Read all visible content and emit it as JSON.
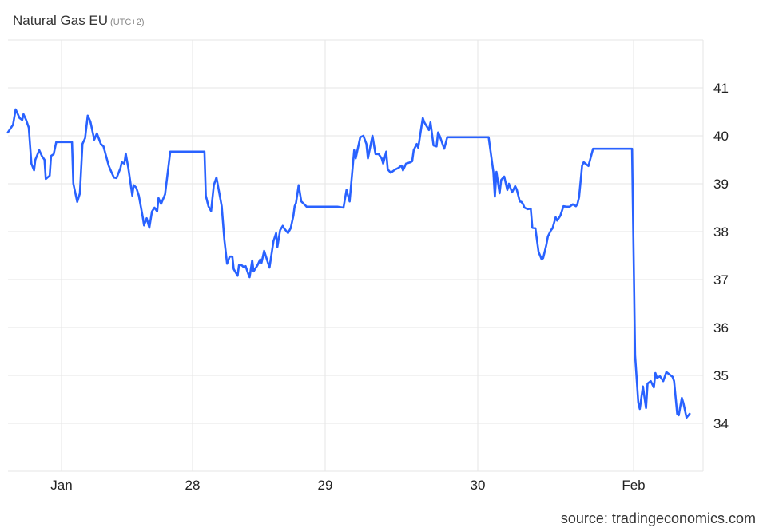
{
  "header": {
    "title": "Natural Gas EU",
    "timezone": "(UTC+2)"
  },
  "footer": {
    "source": "source: tradingeconomics.com"
  },
  "chart_data": {
    "type": "line",
    "title": "Natural Gas EU",
    "xlabel": "",
    "ylabel": "",
    "ylim": [
      33,
      42
    ],
    "xlim": [
      -0.41,
      4.45
    ],
    "grid": true,
    "y_axis_side": "right",
    "colors": {
      "line": "#2962ff",
      "grid": "#e6e6e6"
    },
    "x_ticks": [
      {
        "label": "Jan",
        "x": 0
      },
      {
        "label": "28",
        "x": 1
      },
      {
        "label": "29",
        "x": 2
      },
      {
        "label": "30",
        "x": 3
      },
      {
        "label": "Feb",
        "x": 4
      }
    ],
    "y_ticks": [
      34,
      35,
      36,
      37,
      38,
      39,
      40,
      41
    ],
    "series": [
      {
        "points": [
          [
            -0.41,
            40.07
          ],
          [
            -0.37,
            40.23
          ],
          [
            -0.35,
            40.55
          ],
          [
            -0.32,
            40.37
          ],
          [
            -0.3,
            40.33
          ],
          [
            -0.29,
            40.45
          ],
          [
            -0.27,
            40.33
          ],
          [
            -0.25,
            40.17
          ],
          [
            -0.23,
            39.42
          ],
          [
            -0.21,
            39.28
          ],
          [
            -0.2,
            39.5
          ],
          [
            -0.17,
            39.7
          ],
          [
            -0.15,
            39.58
          ],
          [
            -0.13,
            39.5
          ],
          [
            -0.12,
            39.1
          ],
          [
            -0.09,
            39.17
          ],
          [
            -0.08,
            39.58
          ],
          [
            -0.06,
            39.62
          ],
          [
            -0.04,
            39.87
          ],
          [
            0.08,
            39.87
          ],
          [
            0.09,
            39.0
          ],
          [
            0.12,
            38.62
          ],
          [
            0.14,
            38.8
          ],
          [
            0.16,
            39.83
          ],
          [
            0.18,
            39.95
          ],
          [
            0.2,
            40.42
          ],
          [
            0.22,
            40.3
          ],
          [
            0.25,
            39.92
          ],
          [
            0.27,
            40.05
          ],
          [
            0.3,
            39.83
          ],
          [
            0.32,
            39.78
          ],
          [
            0.36,
            39.38
          ],
          [
            0.38,
            39.25
          ],
          [
            0.4,
            39.13
          ],
          [
            0.42,
            39.12
          ],
          [
            0.45,
            39.33
          ],
          [
            0.46,
            39.45
          ],
          [
            0.48,
            39.42
          ],
          [
            0.49,
            39.63
          ],
          [
            0.51,
            39.33
          ],
          [
            0.54,
            38.75
          ],
          [
            0.55,
            38.97
          ],
          [
            0.57,
            38.92
          ],
          [
            0.59,
            38.75
          ],
          [
            0.62,
            38.3
          ],
          [
            0.63,
            38.13
          ],
          [
            0.65,
            38.28
          ],
          [
            0.67,
            38.08
          ],
          [
            0.69,
            38.42
          ],
          [
            0.71,
            38.5
          ],
          [
            0.73,
            38.42
          ],
          [
            0.74,
            38.7
          ],
          [
            0.76,
            38.58
          ],
          [
            0.79,
            38.78
          ],
          [
            0.83,
            39.67
          ],
          [
            1.09,
            39.67
          ],
          [
            1.1,
            38.75
          ],
          [
            1.12,
            38.53
          ],
          [
            1.14,
            38.43
          ],
          [
            1.16,
            38.97
          ],
          [
            1.18,
            39.13
          ],
          [
            1.22,
            38.53
          ],
          [
            1.24,
            37.83
          ],
          [
            1.26,
            37.33
          ],
          [
            1.28,
            37.48
          ],
          [
            1.3,
            37.48
          ],
          [
            1.31,
            37.22
          ],
          [
            1.34,
            37.08
          ],
          [
            1.35,
            37.3
          ],
          [
            1.37,
            37.3
          ],
          [
            1.39,
            37.25
          ],
          [
            1.4,
            37.28
          ],
          [
            1.42,
            37.12
          ],
          [
            1.43,
            37.05
          ],
          [
            1.45,
            37.4
          ],
          [
            1.46,
            37.17
          ],
          [
            1.49,
            37.3
          ],
          [
            1.51,
            37.42
          ],
          [
            1.52,
            37.35
          ],
          [
            1.54,
            37.6
          ],
          [
            1.58,
            37.25
          ],
          [
            1.61,
            37.8
          ],
          [
            1.63,
            37.97
          ],
          [
            1.64,
            37.68
          ],
          [
            1.66,
            38.03
          ],
          [
            1.68,
            38.12
          ],
          [
            1.69,
            38.07
          ],
          [
            1.72,
            37.97
          ],
          [
            1.74,
            38.07
          ],
          [
            1.76,
            38.33
          ],
          [
            1.77,
            38.53
          ],
          [
            1.78,
            38.6
          ],
          [
            1.8,
            38.97
          ],
          [
            1.82,
            38.63
          ],
          [
            1.85,
            38.55
          ],
          [
            1.86,
            38.52
          ],
          [
            2.08,
            38.52
          ],
          [
            2.12,
            38.5
          ],
          [
            2.14,
            38.87
          ],
          [
            2.16,
            38.63
          ],
          [
            2.19,
            39.7
          ],
          [
            2.2,
            39.53
          ],
          [
            2.23,
            39.97
          ],
          [
            2.25,
            40.0
          ],
          [
            2.27,
            39.83
          ],
          [
            2.28,
            39.53
          ],
          [
            2.31,
            40.0
          ],
          [
            2.33,
            39.62
          ],
          [
            2.35,
            39.62
          ],
          [
            2.37,
            39.53
          ],
          [
            2.38,
            39.42
          ],
          [
            2.4,
            39.67
          ],
          [
            2.41,
            39.3
          ],
          [
            2.43,
            39.23
          ],
          [
            2.46,
            39.3
          ],
          [
            2.48,
            39.33
          ],
          [
            2.5,
            39.38
          ],
          [
            2.51,
            39.28
          ],
          [
            2.53,
            39.42
          ],
          [
            2.56,
            39.45
          ],
          [
            2.57,
            39.47
          ],
          [
            2.58,
            39.7
          ],
          [
            2.6,
            39.83
          ],
          [
            2.61,
            39.75
          ],
          [
            2.63,
            40.17
          ],
          [
            2.64,
            40.37
          ],
          [
            2.65,
            40.28
          ],
          [
            2.68,
            40.12
          ],
          [
            2.69,
            40.28
          ],
          [
            2.71,
            39.8
          ],
          [
            2.73,
            39.78
          ],
          [
            2.74,
            40.07
          ],
          [
            2.75,
            40.0
          ],
          [
            2.78,
            39.73
          ],
          [
            2.8,
            39.97
          ],
          [
            3.07,
            39.97
          ],
          [
            3.1,
            39.25
          ],
          [
            3.11,
            38.73
          ],
          [
            3.12,
            39.25
          ],
          [
            3.14,
            38.8
          ],
          [
            3.15,
            39.08
          ],
          [
            3.17,
            39.15
          ],
          [
            3.19,
            38.87
          ],
          [
            3.2,
            39.0
          ],
          [
            3.22,
            38.82
          ],
          [
            3.24,
            38.95
          ],
          [
            3.25,
            38.88
          ],
          [
            3.27,
            38.63
          ],
          [
            3.28,
            38.62
          ],
          [
            3.29,
            38.58
          ],
          [
            3.3,
            38.5
          ],
          [
            3.32,
            38.47
          ],
          [
            3.34,
            38.48
          ],
          [
            3.35,
            38.08
          ],
          [
            3.37,
            38.07
          ],
          [
            3.39,
            37.58
          ],
          [
            3.41,
            37.42
          ],
          [
            3.42,
            37.45
          ],
          [
            3.44,
            37.72
          ],
          [
            3.45,
            37.9
          ],
          [
            3.47,
            38.03
          ],
          [
            3.48,
            38.07
          ],
          [
            3.5,
            38.3
          ],
          [
            3.51,
            38.23
          ],
          [
            3.53,
            38.33
          ],
          [
            3.55,
            38.53
          ],
          [
            3.57,
            38.52
          ],
          [
            3.59,
            38.52
          ],
          [
            3.61,
            38.57
          ],
          [
            3.63,
            38.53
          ],
          [
            3.64,
            38.58
          ],
          [
            3.65,
            38.72
          ],
          [
            3.67,
            39.38
          ],
          [
            3.68,
            39.45
          ],
          [
            3.71,
            39.37
          ],
          [
            3.74,
            39.73
          ],
          [
            3.99,
            39.73
          ],
          [
            4.01,
            35.42
          ],
          [
            4.03,
            34.43
          ],
          [
            4.04,
            34.3
          ],
          [
            4.06,
            34.77
          ],
          [
            4.08,
            34.32
          ],
          [
            4.09,
            34.83
          ],
          [
            4.11,
            34.88
          ],
          [
            4.13,
            34.75
          ],
          [
            4.14,
            35.05
          ],
          [
            4.15,
            34.95
          ],
          [
            4.17,
            34.98
          ],
          [
            4.19,
            34.88
          ],
          [
            4.21,
            35.07
          ],
          [
            4.23,
            35.02
          ],
          [
            4.25,
            34.97
          ],
          [
            4.26,
            34.88
          ],
          [
            4.28,
            34.2
          ],
          [
            4.29,
            34.17
          ],
          [
            4.31,
            34.53
          ],
          [
            4.32,
            34.42
          ],
          [
            4.34,
            34.12
          ],
          [
            4.36,
            34.2
          ]
        ]
      }
    ]
  }
}
